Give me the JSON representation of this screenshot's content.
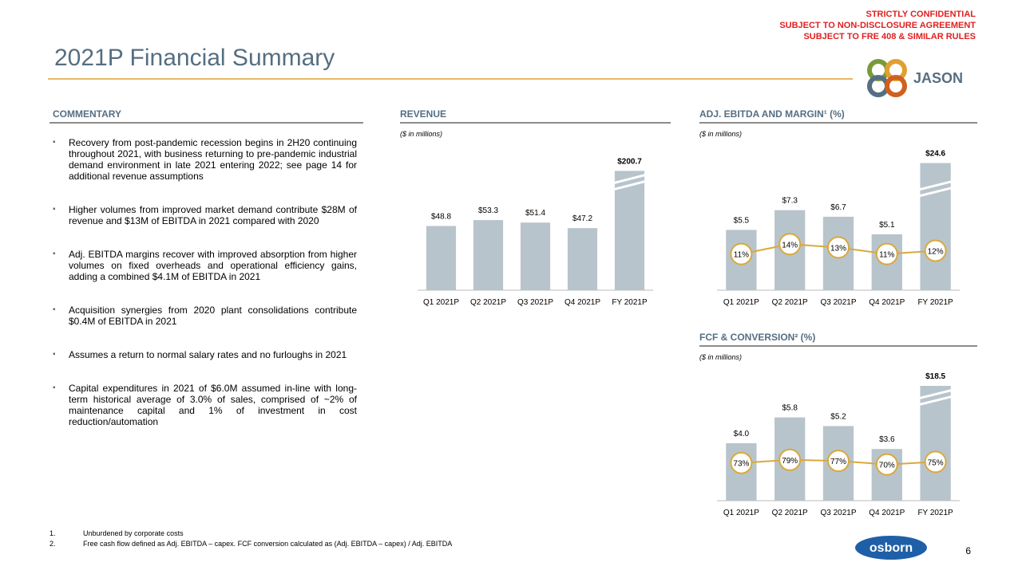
{
  "header": {
    "title": "2021P Financial Summary",
    "confidential": [
      "STRICTLY CONFIDENTIAL",
      "SUBJECT TO NON-DISCLOSURE AGREEMENT",
      "SUBJECT TO FRE 408 & SIMILAR RULES"
    ],
    "logo": "JASON"
  },
  "commentary": {
    "heading": "COMMENTARY",
    "bullets": [
      "Recovery from post-pandemic recession begins in 2H20 continuing throughout 2021, with business returning to pre-pandemic industrial demand environment in late 2021 entering 2022; see page 14 for additional revenue assumptions",
      "Higher volumes from improved market demand contribute $28M of revenue and $13M of EBITDA in 2021 compared with 2020",
      "Adj. EBITDA margins recover with improved absorption from higher volumes on fixed overheads and operational efficiency gains, adding a combined $4.1M of EBITDA in 2021",
      "Acquisition synergies from 2020 plant consolidations contribute $0.4M of EBITDA in 2021",
      "Assumes a return to normal salary rates and no furloughs in 2021",
      "Capital expenditures in 2021 of $6.0M assumed in-line with long-term historical average of 3.0% of sales, comprised of ~2% of maintenance capital and 1% of investment in cost reduction/automation"
    ]
  },
  "chart_data": [
    {
      "type": "bar",
      "title": "REVENUE",
      "subtitle": "($ in millions)",
      "categories": [
        "Q1 2021P",
        "Q2 2021P",
        "Q3 2021P",
        "Q4 2021P",
        "FY 2021P"
      ],
      "series": [
        {
          "values": [
            48.8,
            53.3,
            51.4,
            47.2,
            200.7
          ],
          "value_labels": [
            "$48.8",
            "$53.3",
            "$51.4",
            "$47.2",
            "$200.7"
          ],
          "color": "#b8c4cc"
        }
      ],
      "ylim": [
        0,
        100
      ],
      "axis_break": [
        80,
        190
      ]
    },
    {
      "type": "combo",
      "title": "ADJ. EBITDA AND MARGIN¹ (%)",
      "subtitle": "($ in millions)",
      "categories": [
        "Q1 2021P",
        "Q2 2021P",
        "Q3 2021P",
        "Q4 2021P",
        "FY 2021P"
      ],
      "series": [
        {
          "values": [
            5.5,
            7.3,
            6.7,
            5.1,
            24.6
          ],
          "value_labels": [
            "$5.5",
            "$7.3",
            "$6.7",
            "$5.1",
            "$24.6"
          ],
          "color": "#b8c4cc"
        },
        {
          "values": [
            11,
            14,
            13,
            11,
            12
          ],
          "value_labels": [
            "11%",
            "14%",
            "13%",
            "11%",
            "12%"
          ],
          "color": "#d9a93c",
          "axis": "y2"
        }
      ],
      "ylim": [
        0,
        12
      ],
      "y2lim": [
        0,
        40
      ],
      "axis_break": [
        9,
        22
      ]
    },
    {
      "type": "combo",
      "title": "FCF & CONVERSION² (%)",
      "subtitle": "($ in millions)",
      "categories": [
        "Q1 2021P",
        "Q2 2021P",
        "Q3 2021P",
        "Q4 2021P",
        "FY 2021P"
      ],
      "series": [
        {
          "values": [
            4.0,
            5.8,
            5.2,
            3.6,
            18.5
          ],
          "value_labels": [
            "$4.0",
            "$5.8",
            "$5.2",
            "$3.6",
            "$18.5"
          ],
          "color": "#b8c4cc"
        },
        {
          "values": [
            73,
            79,
            77,
            70,
            75
          ],
          "value_labels": [
            "73%",
            "79%",
            "77%",
            "70%",
            "75%"
          ],
          "color": "#d9a93c",
          "axis": "y2"
        }
      ],
      "ylim": [
        0,
        9
      ],
      "y2lim": [
        0,
        250
      ],
      "axis_break": [
        7,
        17.5
      ]
    }
  ],
  "footnotes": [
    {
      "number": "1.",
      "text": "Unburdened by corporate costs"
    },
    {
      "number": "2.",
      "text": "Free cash flow defined as Adj. EBITDA – capex. FCF conversion calculated as (Adj. EBITDA – capex) / Adj. EBITDA"
    }
  ],
  "footer": {
    "logo": "osborn",
    "page": 6
  }
}
